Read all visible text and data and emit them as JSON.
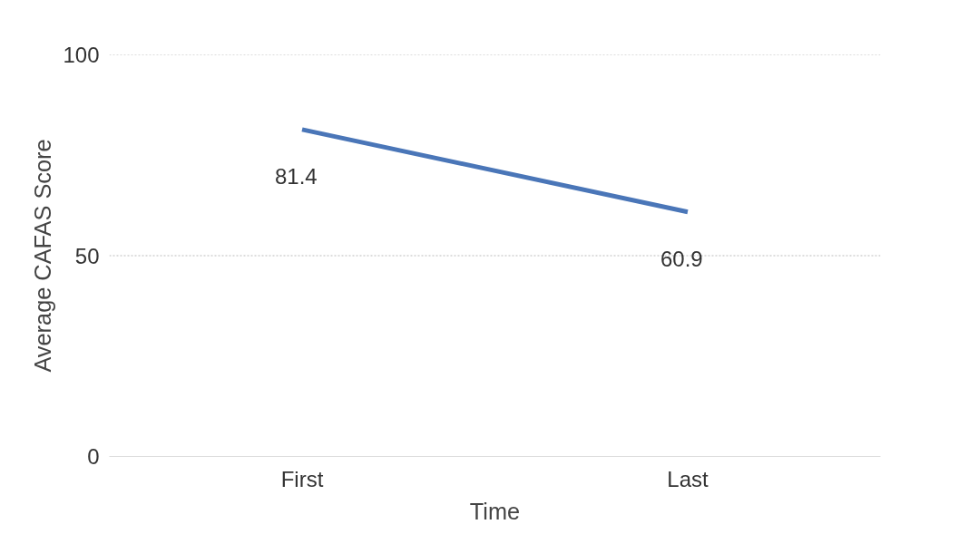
{
  "chart_data": {
    "type": "line",
    "xlabel": "Time",
    "ylabel": "Average CAFAS Score",
    "categories": [
      "First",
      "Last"
    ],
    "series": [
      {
        "color": "#4a76b8",
        "values": [
          81.4,
          60.9
        ]
      }
    ],
    "ylim": [
      0,
      100
    ],
    "yticks": [
      0,
      50,
      100
    ],
    "grid": "y",
    "data_labels": true,
    "marker": "none",
    "line_style": "solid"
  }
}
